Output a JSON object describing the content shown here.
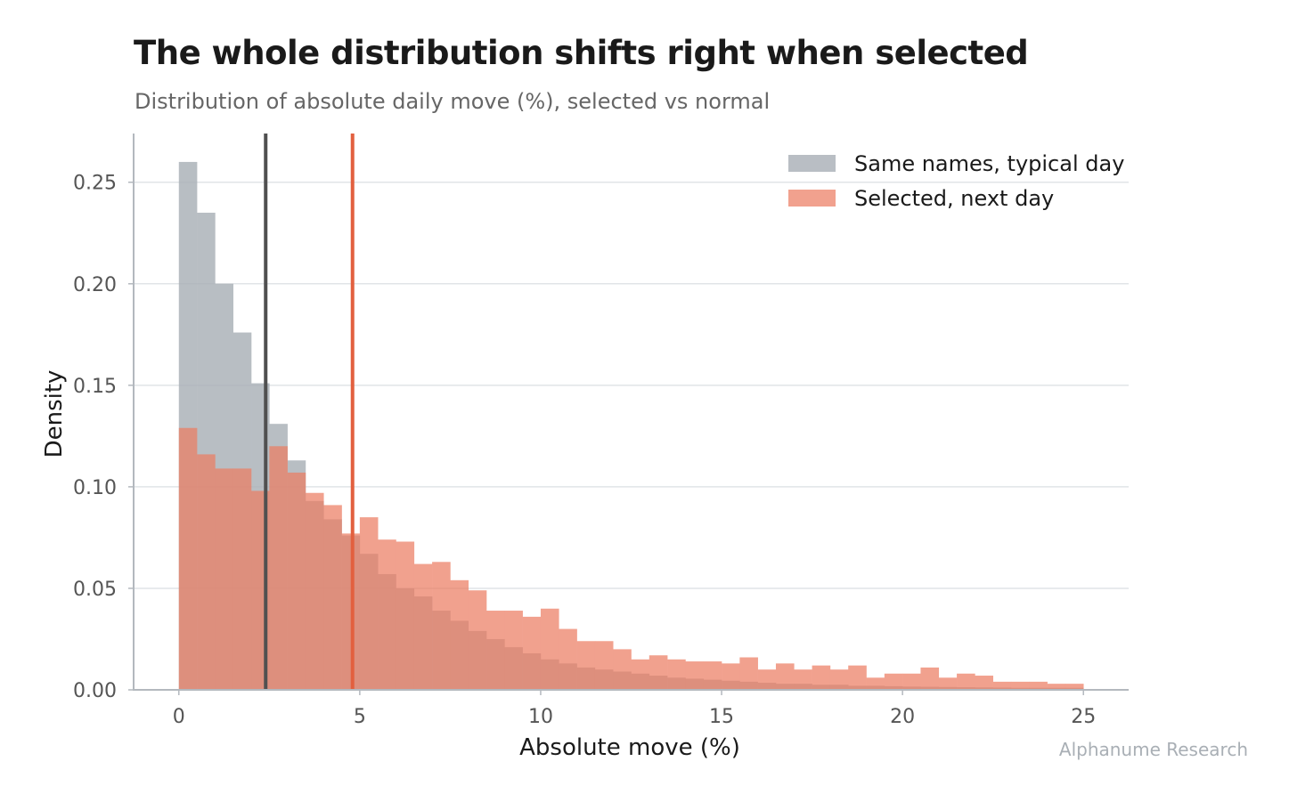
{
  "title": "The whole distribution shifts right when selected",
  "subtitle": "Distribution of absolute daily move (%), selected vs normal",
  "watermark": "Alphanume Research",
  "chart_data": {
    "type": "histogram",
    "title": "The whole distribution shifts right when selected",
    "subtitle": "Distribution of absolute daily move (%), selected vs normal",
    "xlabel": "Absolute move (%)",
    "ylabel": "Density",
    "xlim": [
      -1.25,
      26.25
    ],
    "ylim": [
      0,
      0.274
    ],
    "xticks": [
      0,
      5,
      10,
      15,
      20,
      25
    ],
    "xtick_labels": [
      "0",
      "5",
      "10",
      "15",
      "20",
      "25"
    ],
    "yticks": [
      0,
      0.05,
      0.1,
      0.15,
      0.2,
      0.25
    ],
    "ytick_labels": [
      "0.00",
      "0.05",
      "0.10",
      "0.15",
      "0.20",
      "0.25"
    ],
    "grid": "horizontal",
    "legend_position": "top-right",
    "bin_start": 0,
    "bin_width": 0.5,
    "series": [
      {
        "name": "Same names, typical day",
        "color": "#a9b0b7",
        "values": [
          0.26,
          0.235,
          0.2,
          0.176,
          0.151,
          0.131,
          0.113,
          0.093,
          0.084,
          0.076,
          0.067,
          0.057,
          0.05,
          0.046,
          0.039,
          0.034,
          0.029,
          0.025,
          0.021,
          0.018,
          0.015,
          0.013,
          0.011,
          0.01,
          0.009,
          0.008,
          0.007,
          0.006,
          0.0055,
          0.005,
          0.0045,
          0.004,
          0.0035,
          0.003,
          0.003,
          0.0025,
          0.0025,
          0.002,
          0.002,
          0.0018,
          0.0016,
          0.0015,
          0.0014,
          0.0013,
          0.0012,
          0.0011,
          0.001,
          0.001,
          0.001,
          0.001
        ]
      },
      {
        "name": "Selected, next day",
        "color": "#ec7d63",
        "values": [
          0.129,
          0.116,
          0.109,
          0.109,
          0.098,
          0.12,
          0.107,
          0.097,
          0.091,
          0.077,
          0.085,
          0.074,
          0.073,
          0.062,
          0.063,
          0.054,
          0.049,
          0.039,
          0.039,
          0.036,
          0.04,
          0.03,
          0.024,
          0.024,
          0.02,
          0.015,
          0.017,
          0.015,
          0.014,
          0.014,
          0.013,
          0.016,
          0.01,
          0.013,
          0.01,
          0.012,
          0.01,
          0.012,
          0.006,
          0.008,
          0.008,
          0.011,
          0.006,
          0.008,
          0.007,
          0.004,
          0.004,
          0.004,
          0.003,
          0.003
        ]
      }
    ],
    "vlines": [
      {
        "name": "Same names, typical day mean",
        "x": 2.4,
        "color": "#505050"
      },
      {
        "name": "Selected, next day mean",
        "x": 4.8,
        "color": "#e2603f"
      }
    ]
  }
}
